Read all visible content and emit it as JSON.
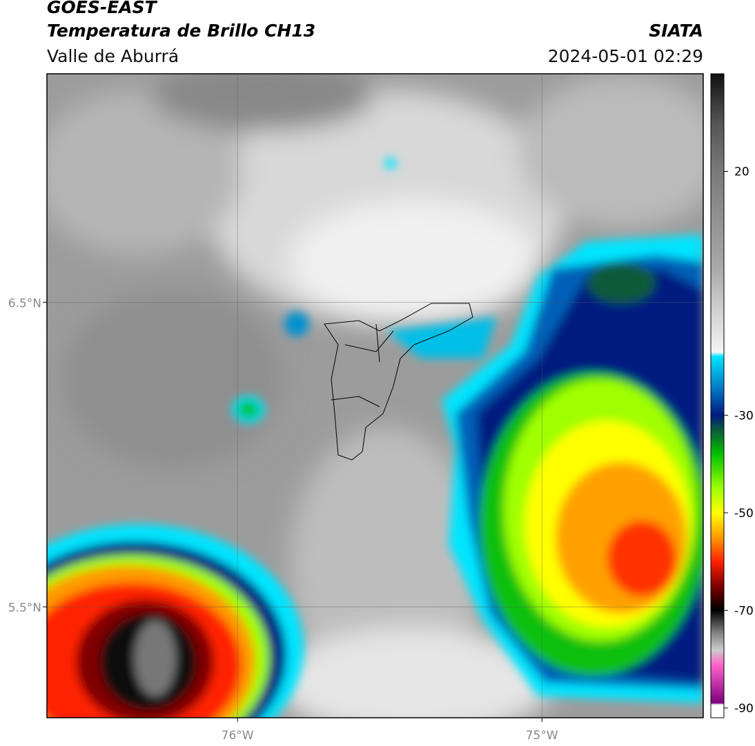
{
  "header": {
    "title": "GOES-EAST",
    "subtitle": "Temperatura de Brillo CH13",
    "region": "Valle de Aburrá",
    "source": "SIATA",
    "datetime": "2024-05-01 02:29"
  },
  "map": {
    "latlim": [
      5.136,
      7.25
    ],
    "lonlim": [
      -76.626,
      -74.47
    ],
    "lat_ticks": [
      {
        "value": 6.5,
        "label": "6.5°N"
      },
      {
        "value": 5.5,
        "label": "5.5°N"
      }
    ],
    "lon_ticks": [
      {
        "value": -76,
        "label": "76°W"
      },
      {
        "value": -75,
        "label": "75°W"
      }
    ]
  },
  "colorbar": {
    "lim": [
      -92,
      40
    ],
    "ticks": [
      20,
      -30,
      -50,
      -70,
      -90
    ]
  }
}
